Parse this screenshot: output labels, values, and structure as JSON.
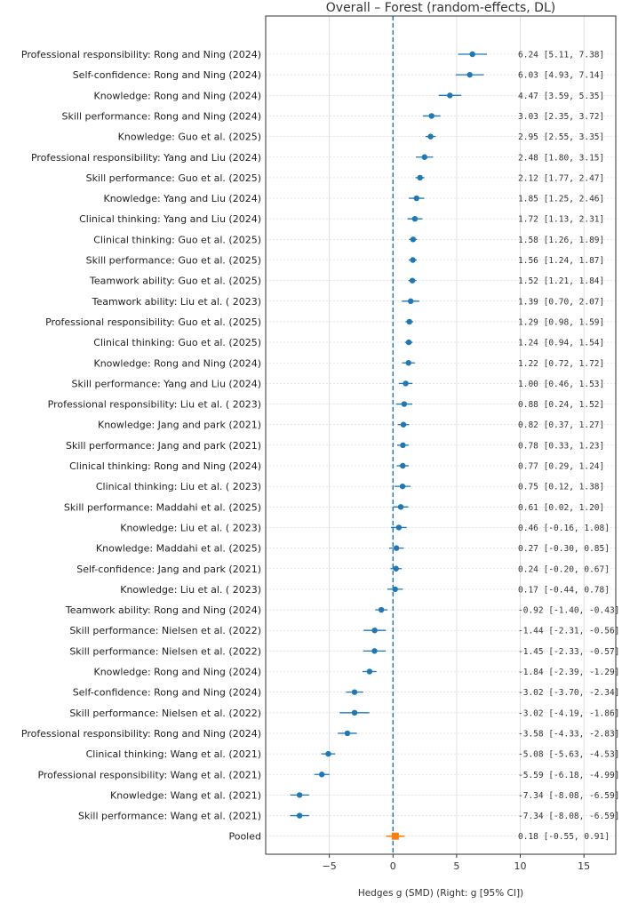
{
  "chart_data": {
    "type": "forest",
    "title": "Overall – Forest (random-effects, DL)",
    "xlabel": "Hedges g (SMD)    (Right: g [95% CI])",
    "xlim": [
      -10,
      17.5
    ],
    "xticks": [
      -5,
      0,
      5,
      10,
      15
    ],
    "reference_line": 0,
    "grid": true,
    "studies": [
      {
        "label": "Professional responsibility: Rong and Ning (2024)",
        "g": 6.24,
        "lo": 5.11,
        "hi": 7.38,
        "text": "6.24 [5.11, 7.38]"
      },
      {
        "label": "Self-confidence: Rong and Ning (2024)",
        "g": 6.03,
        "lo": 4.93,
        "hi": 7.14,
        "text": "6.03 [4.93, 7.14]"
      },
      {
        "label": "Knowledge: Rong and Ning (2024)",
        "g": 4.47,
        "lo": 3.59,
        "hi": 5.35,
        "text": "4.47 [3.59, 5.35]"
      },
      {
        "label": "Skill performance: Rong and Ning (2024)",
        "g": 3.03,
        "lo": 2.35,
        "hi": 3.72,
        "text": "3.03 [2.35, 3.72]"
      },
      {
        "label": "Knowledge: Guo et al. (2025)",
        "g": 2.95,
        "lo": 2.55,
        "hi": 3.35,
        "text": "2.95 [2.55, 3.35]"
      },
      {
        "label": "Professional responsibility: Yang and Liu (2024)",
        "g": 2.48,
        "lo": 1.8,
        "hi": 3.15,
        "text": "2.48 [1.80, 3.15]"
      },
      {
        "label": "Skill performance: Guo et al. (2025)",
        "g": 2.12,
        "lo": 1.77,
        "hi": 2.47,
        "text": "2.12 [1.77, 2.47]"
      },
      {
        "label": "Knowledge: Yang and Liu (2024)",
        "g": 1.85,
        "lo": 1.25,
        "hi": 2.46,
        "text": "1.85 [1.25, 2.46]"
      },
      {
        "label": "Clinical thinking: Yang and Liu (2024)",
        "g": 1.72,
        "lo": 1.13,
        "hi": 2.31,
        "text": "1.72 [1.13, 2.31]"
      },
      {
        "label": "Clinical thinking: Guo et al. (2025)",
        "g": 1.58,
        "lo": 1.26,
        "hi": 1.89,
        "text": "1.58 [1.26, 1.89]"
      },
      {
        "label": "Skill performance: Guo et al. (2025)",
        "g": 1.56,
        "lo": 1.24,
        "hi": 1.87,
        "text": "1.56 [1.24, 1.87]"
      },
      {
        "label": "Teamwork ability: Guo et al. (2025)",
        "g": 1.52,
        "lo": 1.21,
        "hi": 1.84,
        "text": "1.52 [1.21, 1.84]"
      },
      {
        "label": "Teamwork ability: Liu et al. ( 2023)",
        "g": 1.39,
        "lo": 0.7,
        "hi": 2.07,
        "text": "1.39 [0.70, 2.07]"
      },
      {
        "label": "Professional responsibility: Guo et al. (2025)",
        "g": 1.29,
        "lo": 0.98,
        "hi": 1.59,
        "text": "1.29 [0.98, 1.59]"
      },
      {
        "label": "Clinical thinking: Guo et al. (2025)",
        "g": 1.24,
        "lo": 0.94,
        "hi": 1.54,
        "text": "1.24 [0.94, 1.54]"
      },
      {
        "label": "Knowledge: Rong and Ning (2024)",
        "g": 1.22,
        "lo": 0.72,
        "hi": 1.72,
        "text": "1.22 [0.72, 1.72]"
      },
      {
        "label": "Skill performance: Yang and Liu (2024)",
        "g": 1.0,
        "lo": 0.46,
        "hi": 1.53,
        "text": "1.00 [0.46, 1.53]"
      },
      {
        "label": "Professional responsibility: Liu et al. ( 2023)",
        "g": 0.88,
        "lo": 0.24,
        "hi": 1.52,
        "text": "0.88 [0.24, 1.52]"
      },
      {
        "label": "Knowledge: Jang and park (2021)",
        "g": 0.82,
        "lo": 0.37,
        "hi": 1.27,
        "text": "0.82 [0.37, 1.27]"
      },
      {
        "label": "Skill performance: Jang and park (2021)",
        "g": 0.78,
        "lo": 0.33,
        "hi": 1.23,
        "text": "0.78 [0.33, 1.23]"
      },
      {
        "label": "Clinical thinking: Rong and Ning (2024)",
        "g": 0.77,
        "lo": 0.29,
        "hi": 1.24,
        "text": "0.77 [0.29, 1.24]"
      },
      {
        "label": "Clinical thinking: Liu et al. ( 2023)",
        "g": 0.75,
        "lo": 0.12,
        "hi": 1.38,
        "text": "0.75 [0.12, 1.38]"
      },
      {
        "label": "Skill performance: Maddahi et al. (2025)",
        "g": 0.61,
        "lo": 0.02,
        "hi": 1.2,
        "text": "0.61 [0.02, 1.20]"
      },
      {
        "label": "Knowledge: Liu et al. ( 2023)",
        "g": 0.46,
        "lo": -0.16,
        "hi": 1.08,
        "text": "0.46 [-0.16, 1.08]"
      },
      {
        "label": "Knowledge: Maddahi et al. (2025)",
        "g": 0.27,
        "lo": -0.3,
        "hi": 0.85,
        "text": "0.27 [-0.30, 0.85]"
      },
      {
        "label": "Self-confidence: Jang and park (2021)",
        "g": 0.24,
        "lo": -0.2,
        "hi": 0.67,
        "text": "0.24 [-0.20, 0.67]"
      },
      {
        "label": "Knowledge: Liu et al. ( 2023)",
        "g": 0.17,
        "lo": -0.44,
        "hi": 0.78,
        "text": "0.17 [-0.44, 0.78]"
      },
      {
        "label": "Teamwork ability: Rong and Ning (2024)",
        "g": -0.92,
        "lo": -1.4,
        "hi": -0.43,
        "text": "-0.92 [-1.40, -0.43]"
      },
      {
        "label": "Skill performance: Nielsen et al. (2022)",
        "g": -1.44,
        "lo": -2.31,
        "hi": -0.56,
        "text": "-1.44 [-2.31, -0.56]"
      },
      {
        "label": "Skill performance: Nielsen et al. (2022)",
        "g": -1.45,
        "lo": -2.33,
        "hi": -0.57,
        "text": "-1.45 [-2.33, -0.57]"
      },
      {
        "label": "Knowledge: Rong and Ning (2024)",
        "g": -1.84,
        "lo": -2.39,
        "hi": -1.29,
        "text": "-1.84 [-2.39, -1.29]"
      },
      {
        "label": "Self-confidence: Rong and Ning (2024)",
        "g": -3.02,
        "lo": -3.7,
        "hi": -2.34,
        "text": "-3.02 [-3.70, -2.34]"
      },
      {
        "label": "Skill performance: Nielsen et al. (2022)",
        "g": -3.02,
        "lo": -4.19,
        "hi": -1.86,
        "text": "-3.02 [-4.19, -1.86]"
      },
      {
        "label": "Professional responsibility: Rong and Ning (2024)",
        "g": -3.58,
        "lo": -4.33,
        "hi": -2.83,
        "text": "-3.58 [-4.33, -2.83]"
      },
      {
        "label": "Clinical thinking: Wang et al. (2021)",
        "g": -5.08,
        "lo": -5.63,
        "hi": -4.53,
        "text": "-5.08 [-5.63, -4.53]"
      },
      {
        "label": "Professional responsibility: Wang et al. (2021)",
        "g": -5.59,
        "lo": -6.18,
        "hi": -4.99,
        "text": "-5.59 [-6.18, -4.99]"
      },
      {
        "label": "Knowledge: Wang et al. (2021)",
        "g": -7.34,
        "lo": -8.08,
        "hi": -6.59,
        "text": "-7.34 [-8.08, -6.59]"
      },
      {
        "label": "Skill performance: Wang et al. (2021)",
        "g": -7.34,
        "lo": -8.08,
        "hi": -6.59,
        "text": "-7.34 [-8.08, -6.59]"
      }
    ],
    "pooled": {
      "label": "Pooled",
      "g": 0.18,
      "lo": -0.55,
      "hi": 0.91,
      "text": "0.18 [-0.55, 0.91]"
    },
    "colors": {
      "study": "#1f77b4",
      "pooled": "#ff7f0e",
      "refline": "#1f77b4",
      "grid": "#d8d8d8",
      "axis": "#333333"
    }
  }
}
